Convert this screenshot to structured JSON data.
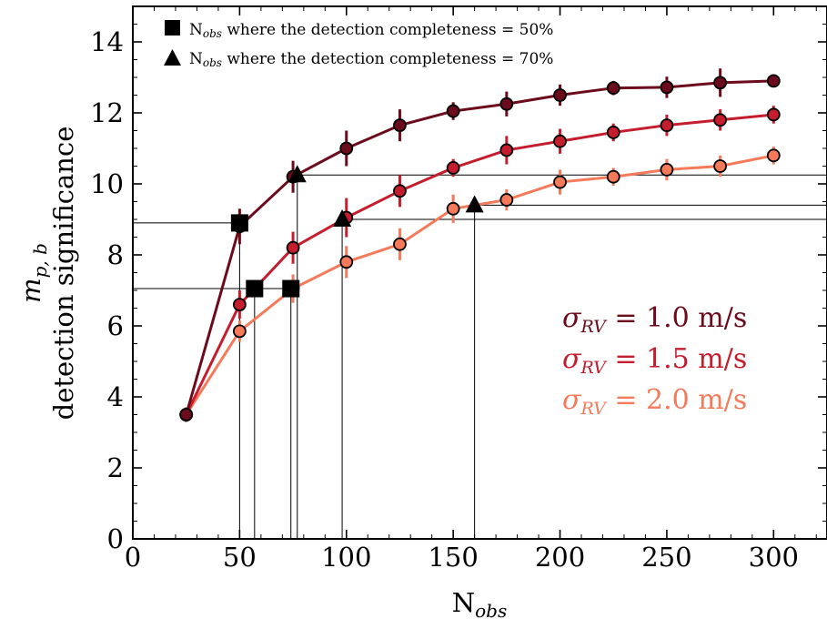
{
  "chart_data": {
    "type": "line",
    "xlabel": "N",
    "xlabel_sub": "obs",
    "ylabel_line1": "m",
    "ylabel_line1_sub": "p, b",
    "ylabel_line2": "detection significance",
    "xlim": [
      0,
      325
    ],
    "ylim": [
      0,
      15
    ],
    "xticks": [
      0,
      50,
      100,
      150,
      200,
      250,
      300
    ],
    "yticks": [
      0,
      2,
      4,
      6,
      8,
      10,
      12,
      14
    ],
    "grid": false,
    "x": [
      25,
      50,
      75,
      100,
      125,
      150,
      175,
      200,
      225,
      250,
      275,
      300
    ],
    "series": [
      {
        "name": "σRV = 1.0 m/s",
        "color": "#6b0b1c",
        "y": [
          3.5,
          8.8,
          10.2,
          11.0,
          11.65,
          12.05,
          12.25,
          12.5,
          12.7,
          12.72,
          12.85,
          12.9
        ],
        "err": [
          0.2,
          0.5,
          0.45,
          0.5,
          0.45,
          0.25,
          0.35,
          0.3,
          0.2,
          0.3,
          0.4,
          0.15
        ]
      },
      {
        "name": "σRV = 1.5 m/s",
        "color": "#c41d2d",
        "y": [
          3.5,
          6.6,
          8.2,
          9.05,
          9.8,
          10.45,
          10.95,
          11.2,
          11.45,
          11.65,
          11.8,
          11.95
        ],
        "err": [
          0.2,
          0.4,
          0.45,
          0.55,
          0.45,
          0.25,
          0.4,
          0.35,
          0.25,
          0.3,
          0.3,
          0.25
        ]
      },
      {
        "name": "σRV = 2.0 m/s",
        "color": "#f47a5a",
        "y": [
          3.5,
          5.85,
          7.05,
          7.8,
          8.3,
          9.3,
          9.55,
          10.05,
          10.2,
          10.4,
          10.5,
          10.8
        ],
        "err": [
          0.2,
          0.3,
          0.4,
          0.45,
          0.45,
          0.4,
          0.3,
          0.35,
          0.25,
          0.3,
          0.3,
          0.25
        ]
      }
    ],
    "markers_50": [
      {
        "x": 50,
        "y": 8.9
      },
      {
        "x": 57,
        "y": 7.05
      },
      {
        "x": 74,
        "y": 7.05
      }
    ],
    "markers_70": [
      {
        "x": 77,
        "y": 10.25
      },
      {
        "x": 98,
        "y": 9.0
      },
      {
        "x": 160,
        "y": 9.4
      }
    ],
    "hlines": [
      {
        "y": 8.9,
        "x_to": 50
      },
      {
        "y": 7.05,
        "x_to": 74
      },
      {
        "y": 10.25,
        "x_from": 77
      },
      {
        "y": 9.0,
        "x_from": 98
      },
      {
        "y": 9.4,
        "x_from": 160
      }
    ],
    "vlines": [
      50,
      57,
      74,
      77,
      98,
      160
    ],
    "legend": {
      "position": "top-left",
      "entries": [
        {
          "marker": "square",
          "prefix": "N",
          "sub": "obs",
          "text": " where the detection completeness = 50%"
        },
        {
          "marker": "triangle",
          "prefix": "N",
          "sub": "obs",
          "text": " where the detection completeness = 70%"
        }
      ]
    },
    "annotations": [
      {
        "greek": "σ",
        "sub": "RV",
        "text": " = 1.0 m/s",
        "color": "#6b0b1c"
      },
      {
        "greek": "σ",
        "sub": "RV",
        "text": " = 1.5 m/s",
        "color": "#c41d2d"
      },
      {
        "greek": "σ",
        "sub": "RV",
        "text": " = 2.0 m/s",
        "color": "#f47a5a"
      }
    ]
  }
}
